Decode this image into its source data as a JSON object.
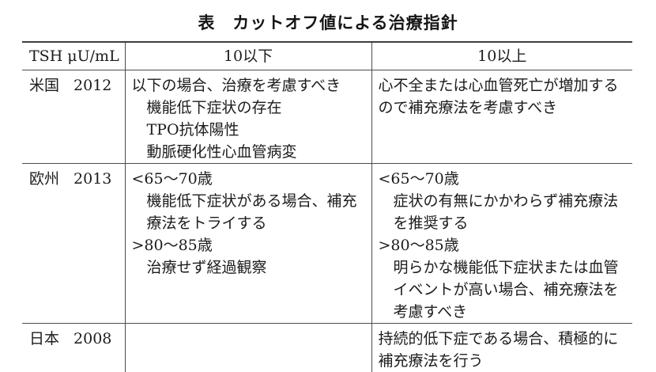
{
  "page": {
    "title": "表　カットオフ値による治療指針"
  },
  "table": {
    "header": {
      "tsh_label": "TSH μU/mL",
      "below_label": "10以下",
      "above_label": "10以上"
    },
    "rows": [
      {
        "region": "米国",
        "year": "2012",
        "below_10": [
          {
            "indent": 0,
            "text": "以下の場合、治療を考慮すべき"
          },
          {
            "indent": 1,
            "text": "機能低下症状の存在"
          },
          {
            "indent": 1,
            "text": "TPO抗体陽性"
          },
          {
            "indent": 1,
            "text": "動脈硬化性心血管病変"
          }
        ],
        "above_10": [
          {
            "indent": 0,
            "text": "心不全または心血管死亡が増加するので補充療法を考慮すべき"
          }
        ]
      },
      {
        "region": "欧州",
        "year": "2013",
        "below_10": [
          {
            "indent": 0,
            "text": "<65〜70歳"
          },
          {
            "indent": 1,
            "text": "機能低下症状がある場合、補充療法をトライする"
          },
          {
            "indent": 0,
            "text": ">80〜85歳"
          },
          {
            "indent": 1,
            "text": "治療せず経過観察"
          }
        ],
        "above_10": [
          {
            "indent": 0,
            "text": "<65〜70歳"
          },
          {
            "indent": 1,
            "text": "症状の有無にかかわらず補充療法を推奨する"
          },
          {
            "indent": 0,
            "text": ">80〜85歳"
          },
          {
            "indent": 1,
            "text": "明らかな機能低下症状または血管イベントが高い場合、補充療法を考慮すべき"
          }
        ]
      },
      {
        "region": "日本",
        "year": "2008",
        "below_10": [],
        "above_10": [
          {
            "indent": 0,
            "text": "持続的低下症である場合、積極的に補充療法を行う"
          }
        ]
      }
    ]
  }
}
